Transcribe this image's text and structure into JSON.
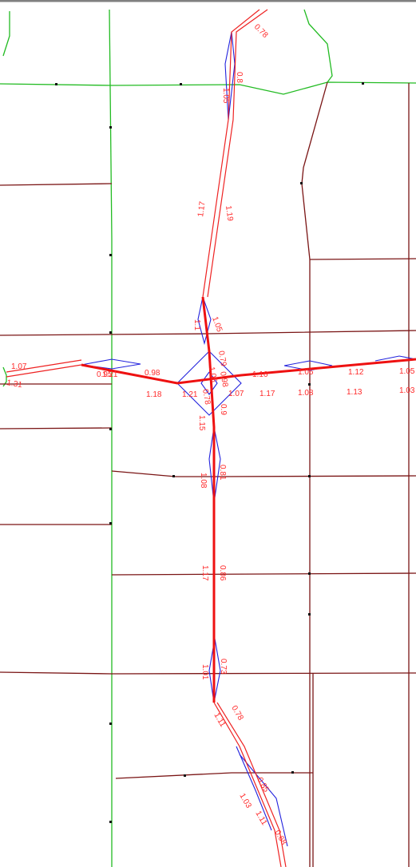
{
  "map": {
    "colors": {
      "background": "#ffffff",
      "frame": "#808080",
      "minor_road": "#7a1515",
      "boundary": "#22bb22",
      "interchange": "#2222dd",
      "highway": "#ee2222"
    },
    "labels": {
      "top_078": "0.78",
      "top_105": "1.05",
      "top_08": "0.8",
      "hw_117": "1.17",
      "hw_119": "1.19",
      "nw_1": "1.1",
      "nw_105": "1.05",
      "west_107": "1.07",
      "west_131": "1.31",
      "w_095": "0.95",
      "w_121": "1.21",
      "w_098": "0.98",
      "w_118": "1.18",
      "c_121": "1.21",
      "c_105": "1.05",
      "c_079": "0.79",
      "c_098": "0.98",
      "c_078": "0.78",
      "c_09": "0.9",
      "c_107": "1.07",
      "e_116": "1.16",
      "e_117": "1.17",
      "e_106": "1.06",
      "e_108": "1.08",
      "e_112": "1.12",
      "e_113": "1.13",
      "e_105": "1.05",
      "e_103": "1.03",
      "s_115": "1.15",
      "s_108": "1.08",
      "s_081": "0.81",
      "s_117": "1.17",
      "s_086": "0.86",
      "s_101": "1.01",
      "s_073": "0.73",
      "s_078": "0.78",
      "s_111": "1.11",
      "s_103": "1.03",
      "s_085": "0.85",
      "s_111b": "1.11",
      "s_068": "0.68"
    }
  }
}
